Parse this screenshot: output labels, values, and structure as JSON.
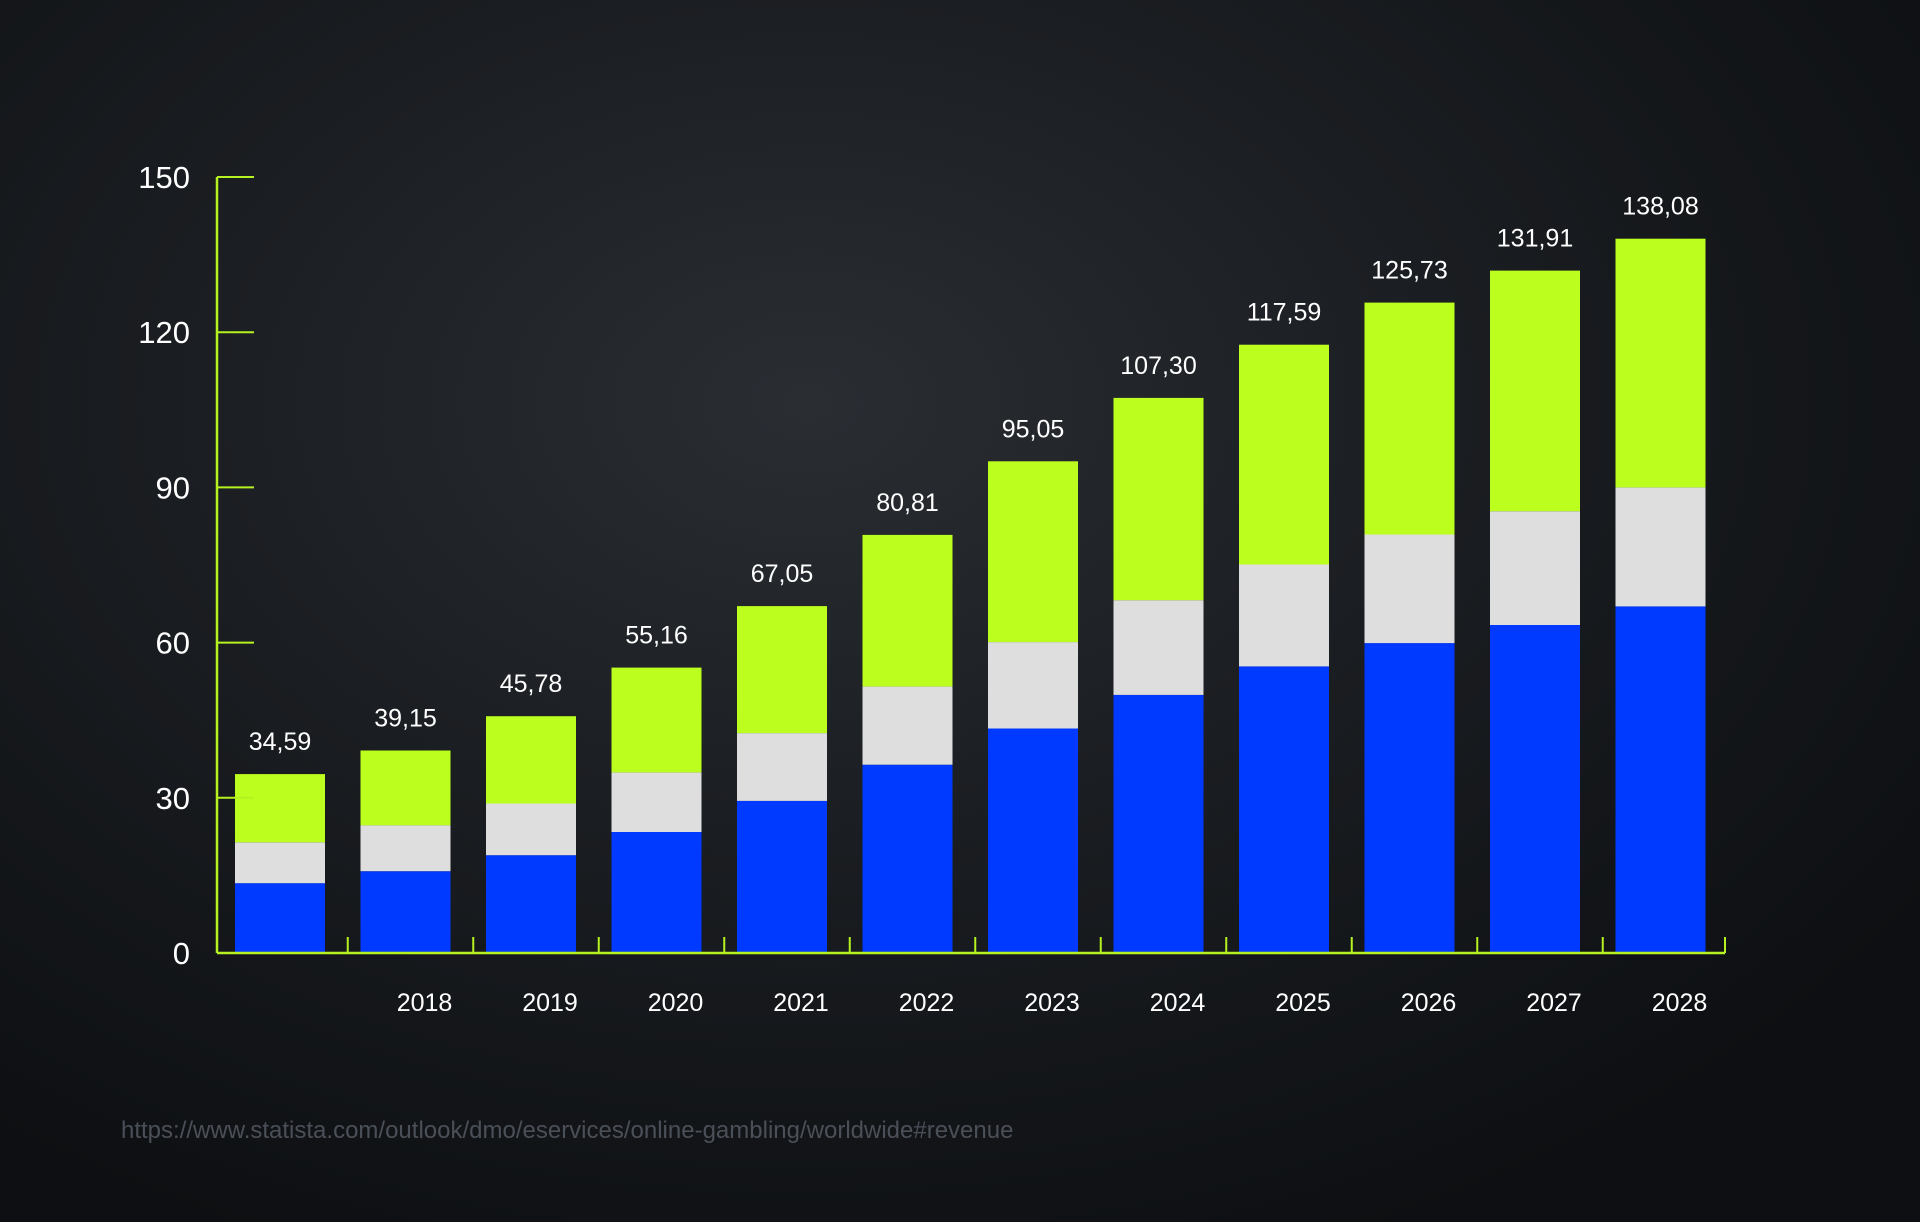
{
  "chart_data": {
    "type": "bar",
    "stacked": true,
    "categories": [
      "",
      "2018",
      "2019",
      "2020",
      "2021",
      "2022",
      "2023",
      "2024",
      "2025",
      "2026",
      "2027",
      "2028"
    ],
    "series": [
      {
        "values": [
          13.5,
          15.8,
          18.9,
          23.4,
          29.4,
          36.4,
          43.4,
          49.9,
          55.4,
          59.9,
          63.4,
          67.0
        ]
      },
      {
        "values": [
          7.9,
          8.9,
          10.0,
          11.5,
          13.1,
          15.1,
          16.7,
          18.3,
          19.7,
          21.0,
          22.0,
          23.0
        ]
      },
      {
        "values": [
          13.19,
          14.45,
          16.88,
          20.26,
          24.55,
          29.31,
          34.95,
          39.1,
          42.49,
          44.83,
          46.51,
          48.08
        ]
      }
    ],
    "totals": [
      "34,59",
      "39,15",
      "45,78",
      "55,16",
      "67,05",
      "80,81",
      "95,05",
      "107,30",
      "117,59",
      "125,73",
      "131,91",
      "138,08"
    ],
    "yticks": [
      0,
      30,
      60,
      90,
      120,
      150
    ],
    "ylim": [
      0,
      150
    ],
    "grid": false,
    "colors": {
      "series": [
        "#0039ff",
        "#dedede",
        "#bcff1f"
      ],
      "axis": "#b5f220"
    }
  },
  "source_url": "https://www.statista.com/outlook/dmo/eservices/online-gambling/worldwide#revenue"
}
